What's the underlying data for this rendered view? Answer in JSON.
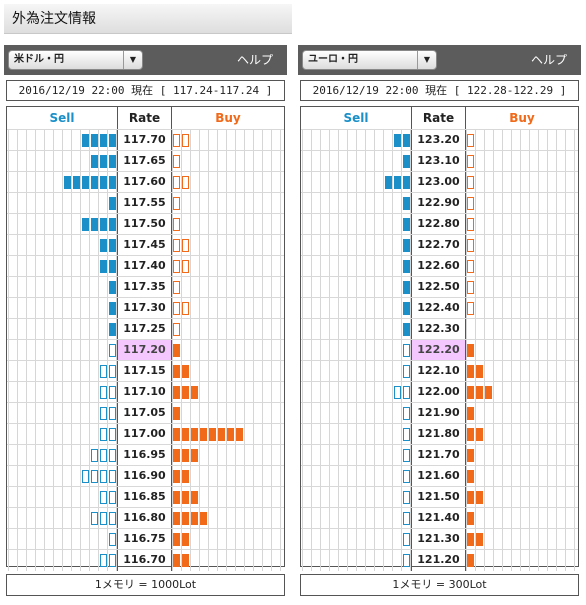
{
  "page_title": "外為注文情報",
  "help_label": "ヘルプ",
  "header": {
    "sell": "Sell",
    "rate": "Rate",
    "buy": "Buy"
  },
  "colors": {
    "sell": "#1a8fc8",
    "buy": "#f06a1a",
    "current_rate_bg": "#f5c7ff"
  },
  "panels": [
    {
      "pair": "米ドル・円",
      "info": "2016/12/19  22:00 現在 [ 117.24-117.24 ]",
      "footer": "1メモリ = 1000Lot",
      "rows": [
        {
          "rate": "117.70",
          "sell": 4,
          "sell_filled": true,
          "buy": 2,
          "buy_filled": false
        },
        {
          "rate": "117.65",
          "sell": 3,
          "sell_filled": true,
          "buy": 1,
          "buy_filled": false
        },
        {
          "rate": "117.60",
          "sell": 6,
          "sell_filled": true,
          "buy": 2,
          "buy_filled": false
        },
        {
          "rate": "117.55",
          "sell": 1,
          "sell_filled": true,
          "buy": 1,
          "buy_filled": false
        },
        {
          "rate": "117.50",
          "sell": 4,
          "sell_filled": true,
          "buy": 1,
          "buy_filled": false
        },
        {
          "rate": "117.45",
          "sell": 2,
          "sell_filled": true,
          "buy": 2,
          "buy_filled": false
        },
        {
          "rate": "117.40",
          "sell": 2,
          "sell_filled": true,
          "buy": 2,
          "buy_filled": false
        },
        {
          "rate": "117.35",
          "sell": 1,
          "sell_filled": true,
          "buy": 1,
          "buy_filled": false
        },
        {
          "rate": "117.30",
          "sell": 1,
          "sell_filled": true,
          "buy": 2,
          "buy_filled": false
        },
        {
          "rate": "117.25",
          "sell": 1,
          "sell_filled": true,
          "buy": 1,
          "buy_filled": false
        },
        {
          "rate": "117.20",
          "sell": 1,
          "sell_filled": false,
          "buy": 1,
          "buy_filled": true,
          "current": true
        },
        {
          "rate": "117.15",
          "sell": 2,
          "sell_filled": false,
          "buy": 2,
          "buy_filled": true
        },
        {
          "rate": "117.10",
          "sell": 2,
          "sell_filled": false,
          "buy": 3,
          "buy_filled": true
        },
        {
          "rate": "117.05",
          "sell": 2,
          "sell_filled": false,
          "buy": 1,
          "buy_filled": true
        },
        {
          "rate": "117.00",
          "sell": 2,
          "sell_filled": false,
          "buy": 8,
          "buy_filled": true
        },
        {
          "rate": "116.95",
          "sell": 3,
          "sell_filled": false,
          "buy": 3,
          "buy_filled": true
        },
        {
          "rate": "116.90",
          "sell": 4,
          "sell_filled": false,
          "buy": 2,
          "buy_filled": true
        },
        {
          "rate": "116.85",
          "sell": 2,
          "sell_filled": false,
          "buy": 3,
          "buy_filled": true
        },
        {
          "rate": "116.80",
          "sell": 3,
          "sell_filled": false,
          "buy": 4,
          "buy_filled": true
        },
        {
          "rate": "116.75",
          "sell": 1,
          "sell_filled": false,
          "buy": 2,
          "buy_filled": true
        },
        {
          "rate": "116.70",
          "sell": 2,
          "sell_filled": false,
          "buy": 2,
          "buy_filled": true
        }
      ]
    },
    {
      "pair": "ユーロ・円",
      "info": "2016/12/19  22:00 現在 [ 122.28-122.29 ]",
      "footer": "1メモリ = 300Lot",
      "rows": [
        {
          "rate": "123.20",
          "sell": 2,
          "sell_filled": true,
          "buy": 1,
          "buy_filled": false
        },
        {
          "rate": "123.10",
          "sell": 1,
          "sell_filled": true,
          "buy": 1,
          "buy_filled": false
        },
        {
          "rate": "123.00",
          "sell": 3,
          "sell_filled": true,
          "buy": 1,
          "buy_filled": false
        },
        {
          "rate": "122.90",
          "sell": 1,
          "sell_filled": true,
          "buy": 1,
          "buy_filled": false
        },
        {
          "rate": "122.80",
          "sell": 1,
          "sell_filled": true,
          "buy": 1,
          "buy_filled": false
        },
        {
          "rate": "122.70",
          "sell": 1,
          "sell_filled": true,
          "buy": 1,
          "buy_filled": false
        },
        {
          "rate": "122.60",
          "sell": 1,
          "sell_filled": true,
          "buy": 1,
          "buy_filled": false
        },
        {
          "rate": "122.50",
          "sell": 1,
          "sell_filled": true,
          "buy": 1,
          "buy_filled": false
        },
        {
          "rate": "122.40",
          "sell": 1,
          "sell_filled": true,
          "buy": 1,
          "buy_filled": false
        },
        {
          "rate": "122.30",
          "sell": 1,
          "sell_filled": true,
          "buy": 0,
          "buy_filled": false
        },
        {
          "rate": "122.20",
          "sell": 1,
          "sell_filled": false,
          "buy": 1,
          "buy_filled": true,
          "current": true
        },
        {
          "rate": "122.10",
          "sell": 1,
          "sell_filled": false,
          "buy": 2,
          "buy_filled": true
        },
        {
          "rate": "122.00",
          "sell": 2,
          "sell_filled": false,
          "buy": 3,
          "buy_filled": true
        },
        {
          "rate": "121.90",
          "sell": 1,
          "sell_filled": false,
          "buy": 1,
          "buy_filled": true
        },
        {
          "rate": "121.80",
          "sell": 1,
          "sell_filled": false,
          "buy": 2,
          "buy_filled": true
        },
        {
          "rate": "121.70",
          "sell": 1,
          "sell_filled": false,
          "buy": 1,
          "buy_filled": true
        },
        {
          "rate": "121.60",
          "sell": 1,
          "sell_filled": false,
          "buy": 1,
          "buy_filled": true
        },
        {
          "rate": "121.50",
          "sell": 1,
          "sell_filled": false,
          "buy": 2,
          "buy_filled": true
        },
        {
          "rate": "121.40",
          "sell": 1,
          "sell_filled": false,
          "buy": 1,
          "buy_filled": true
        },
        {
          "rate": "121.30",
          "sell": 1,
          "sell_filled": false,
          "buy": 2,
          "buy_filled": true
        },
        {
          "rate": "121.20",
          "sell": 1,
          "sell_filled": false,
          "buy": 1,
          "buy_filled": true
        }
      ]
    }
  ]
}
